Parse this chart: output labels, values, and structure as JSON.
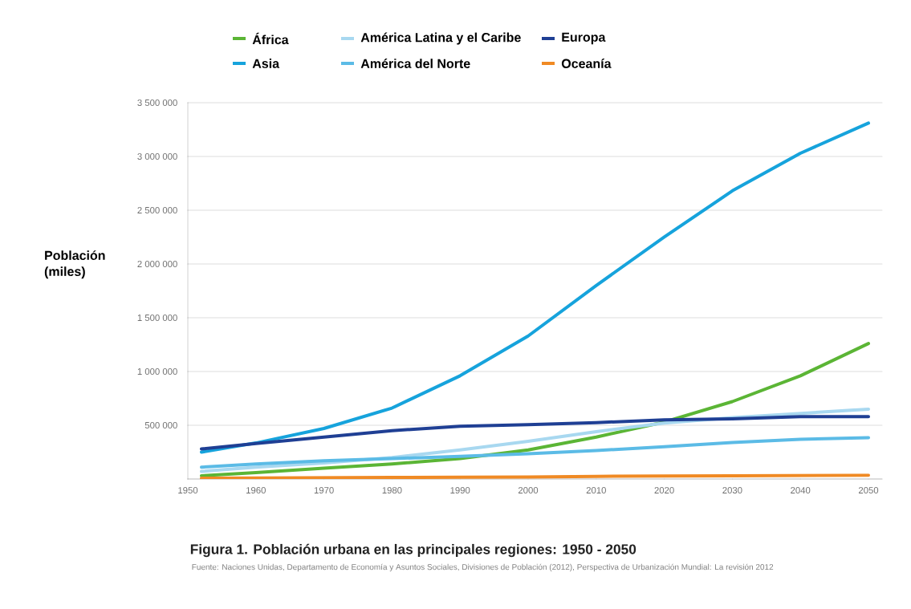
{
  "chart_data": {
    "type": "line",
    "title": "Figura 1. Población urbana en las principales regiones: 1950 - 2050",
    "ylabel": "Población (miles)",
    "annotations": [
      "Fuente: Naciones Unidas, Departamento de Economía y Asuntos Sociales, Divisiones de Población (2012), Perspectiva de Urbanización Mundial: La revisión 2012"
    ],
    "x": [
      1952,
      1960,
      1970,
      1980,
      1990,
      2000,
      2010,
      2020,
      2030,
      2040,
      2050
    ],
    "xlim": [
      1950,
      2052
    ],
    "xticks": [
      1950,
      1960,
      1970,
      1980,
      1990,
      2000,
      2010,
      2020,
      2030,
      2040,
      2050
    ],
    "ylim": [
      0,
      3500000
    ],
    "yticks": [
      {
        "value": 0,
        "label": null
      },
      {
        "value": 500000,
        "label": "500 000"
      },
      {
        "value": 1000000,
        "label": "1 000 000"
      },
      {
        "value": 1500000,
        "label": "1 500 000"
      },
      {
        "value": 2000000,
        "label": "2 000 000"
      },
      {
        "value": 2500000,
        "label": "2 500 000"
      },
      {
        "value": 3000000,
        "label": "3 000 000"
      },
      {
        "value": 3500000,
        "label": "3 500 000"
      }
    ],
    "grid": "y",
    "legend": "top",
    "marker": "none",
    "line_style": "solid",
    "series": [
      {
        "name": "África",
        "color": "#5bb535",
        "values": [
          30000,
          60000,
          100000,
          140000,
          190000,
          270000,
          390000,
          530000,
          720000,
          960000,
          1260000
        ]
      },
      {
        "name": "Asia",
        "color": "#16a3dc",
        "values": [
          250000,
          335000,
          470000,
          660000,
          960000,
          1330000,
          1800000,
          2250000,
          2680000,
          3030000,
          3310000
        ]
      },
      {
        "name": "América Latina y el Caribe",
        "color": "#a8d8f0",
        "values": [
          70000,
          110000,
          150000,
          200000,
          270000,
          350000,
          440000,
          520000,
          570000,
          610000,
          650000
        ]
      },
      {
        "name": "América del Norte",
        "color": "#5bbbe6",
        "values": [
          110000,
          140000,
          170000,
          190000,
          210000,
          235000,
          265000,
          300000,
          340000,
          370000,
          385000
        ]
      },
      {
        "name": "Europa",
        "color": "#1f3f94",
        "values": [
          280000,
          330000,
          390000,
          450000,
          490000,
          505000,
          525000,
          550000,
          560000,
          580000,
          580000
        ]
      },
      {
        "name": "Oceanía",
        "color": "#f08a24",
        "values": [
          8000,
          10000,
          12000,
          14000,
          16000,
          18000,
          25000,
          27000,
          29000,
          32000,
          35000
        ]
      }
    ]
  }
}
